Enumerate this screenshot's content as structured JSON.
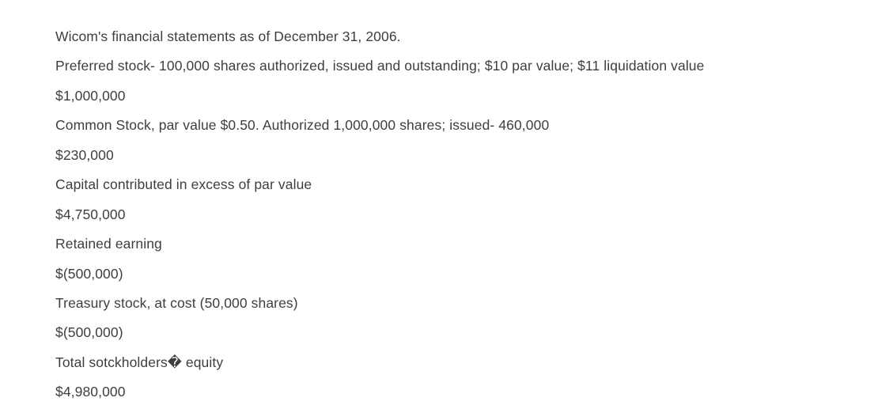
{
  "colors": {
    "text": "#3e3e3c",
    "background": "#ffffff"
  },
  "document": {
    "title": "Wicom's financial statements as of December 31, 2006.",
    "items": [
      {
        "label": "Preferred stock- 100,000 shares authorized, issued and outstanding; $10 par value; $11 liquidation value",
        "value": "$1,000,000"
      },
      {
        "label": "Common Stock, par value $0.50. Authorized 1,000,000 shares; issued- 460,000",
        "value": "$230,000"
      },
      {
        "label": "Capital contributed in excess of par value",
        "value": "$4,750,000"
      },
      {
        "label": "Retained earning",
        "value": "$(500,000)"
      },
      {
        "label": "Treasury stock, at cost (50,000 shares)",
        "value": "$(500,000)"
      },
      {
        "label": "Total sotckholders� equity",
        "value": "$4,980,000"
      }
    ]
  }
}
